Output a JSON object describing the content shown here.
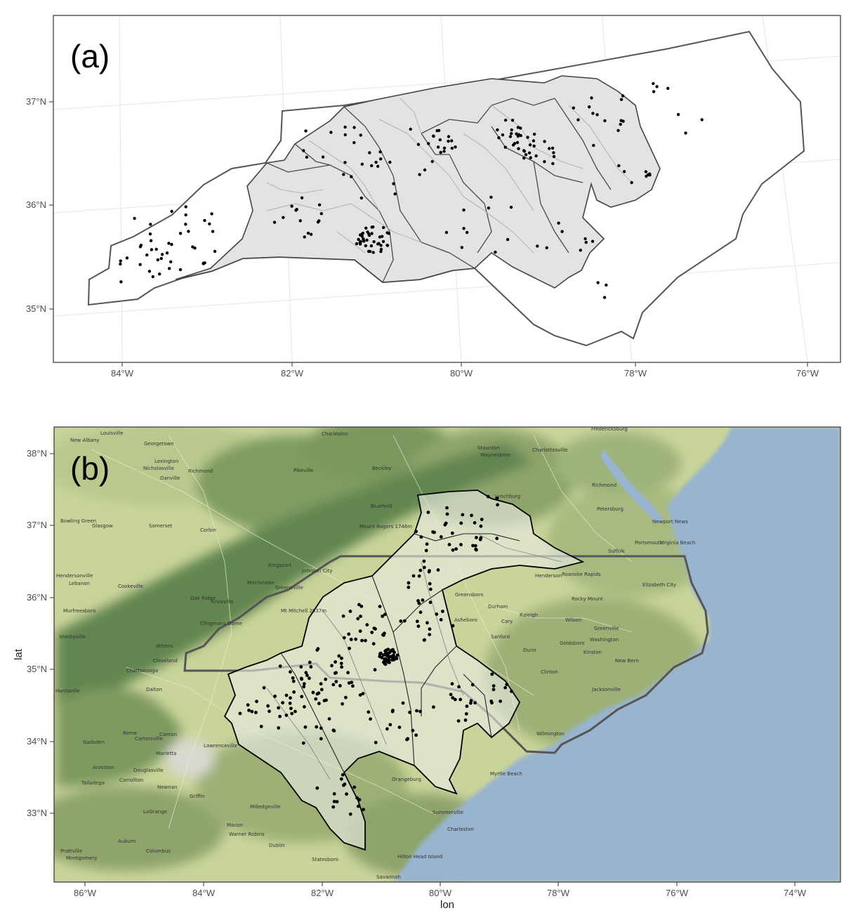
{
  "figure": {
    "panels": [
      {
        "id": "a",
        "tag": "(a)",
        "type": "outline-map",
        "x_ticks": [
          "84°W",
          "82°W",
          "80°W",
          "78°W",
          "76°W"
        ],
        "y_ticks": [
          "35°N",
          "36°N",
          "37°N"
        ],
        "graticule": true,
        "colors": {
          "frame": "#333333",
          "grid": "#e6e6e6",
          "state_outline": "#555555",
          "basin_fill": "#e3e3e3",
          "basin_edge": "#444444",
          "rivers": "#b5b5b5",
          "points": "#000000"
        }
      },
      {
        "id": "b",
        "tag": "(b)",
        "type": "terrain-map",
        "x_ticks": [
          "86°W",
          "84°W",
          "82°W",
          "80°W",
          "78°W",
          "76°W",
          "74°W"
        ],
        "y_ticks": [
          "33°N",
          "34°N",
          "35°N",
          "36°N",
          "37°N",
          "38°N"
        ],
        "x_title": "lon",
        "y_title": "lat",
        "colors": {
          "ocean": "#98b4cf",
          "land_low": "#c9d49a",
          "land_forest": "#8ea46c",
          "mountains": "#62864f",
          "basin_edge": "#000000",
          "state_outline": "#555555",
          "points": "#000000"
        },
        "place_labels": [
          "Louisville",
          "New Albany",
          "Georgetown",
          "Lexington",
          "Nicholasville",
          "Richmond",
          "Danville",
          "Pikeville",
          "Beckley",
          "Bluefield",
          "Charleston",
          "Staunton",
          "Waynesboro",
          "Charlottesville",
          "Fredericksburg",
          "Richmond",
          "Petersburg",
          "Lynchburg",
          "Bowling Green",
          "Glasgow",
          "Somerset",
          "Corbin",
          "Kingsport",
          "Johnson City",
          "Morristown",
          "Greeneville",
          "Knoxville",
          "Oak Ridge",
          "Hendersonville",
          "Lebanon",
          "Cookeville",
          "Murfreesboro",
          "Shelbyville",
          "Athens",
          "Cleveland",
          "Chattanooga",
          "Dalton",
          "Huntsville",
          "Gadsden",
          "Rome",
          "Cartersville",
          "Canton",
          "Marietta",
          "Anniston",
          "Douglasville",
          "Lawrenceville",
          "Carrollton",
          "Newnan",
          "Talladega",
          "Griffin",
          "LaGrange",
          "Milledgeville",
          "Macon",
          "Warner Robins",
          "Dublin",
          "Statesboro",
          "Savannah",
          "Auburn",
          "Columbus",
          "Prattville",
          "Montgomery",
          "Hilton Head Island",
          "Summerville",
          "Charleston",
          "Myrtle Beach",
          "Orangeburg",
          "Wilmington",
          "Jacksonville",
          "Kinston",
          "New Bern",
          "Greenville",
          "Washington",
          "Goldsboro",
          "Wilson",
          "Rocky Mount",
          "Raleigh",
          "Durham",
          "Cary",
          "Sanford",
          "Dunn",
          "Clinton",
          "Asheboro",
          "Greensboro",
          "Henderson",
          "Roanoke Rapids",
          "Suffolk",
          "Portsmouth",
          "Virginia Beach",
          "Newport News",
          "Elizabeth City",
          "Mt Mitchell 2037m",
          "Clingmans Dome",
          "Mount Rogers 1746m"
        ]
      }
    ]
  }
}
